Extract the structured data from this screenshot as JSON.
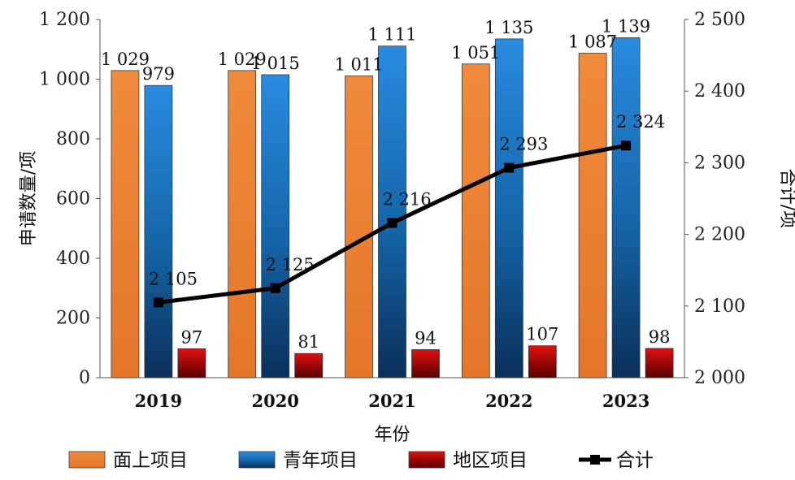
{
  "chart_data": {
    "type": "bar",
    "categories": [
      "2019",
      "2020",
      "2021",
      "2022",
      "2023"
    ],
    "xlabel": "年份",
    "ylabel_left": "申请数量/项",
    "ylabel_right": "合计/项",
    "ylim_left": [
      0,
      1200
    ],
    "ylim_right": [
      2000,
      2500
    ],
    "yticks_left": [
      "0",
      "200",
      "400",
      "600",
      "800",
      "1 000",
      "1 200"
    ],
    "yticks_right": [
      "2 000",
      "2 100",
      "2 200",
      "2 300",
      "2 400",
      "2 500"
    ],
    "grid": false,
    "legend_position": "bottom",
    "series": [
      {
        "name": "面上项目",
        "kind": "bar",
        "axis": "left",
        "color": "#ed7d31",
        "values": [
          1029,
          1029,
          1011,
          1051,
          1087
        ],
        "labels": [
          "1 029",
          "1 029",
          "1 011",
          "1 051",
          "1 087"
        ]
      },
      {
        "name": "青年项目",
        "kind": "bar",
        "axis": "left",
        "color": "#1f78c8",
        "values": [
          979,
          1015,
          1111,
          1135,
          1139
        ],
        "labels": [
          "979",
          "1 015",
          "1 111",
          "1 135",
          "1 139"
        ]
      },
      {
        "name": "地区项目",
        "kind": "bar",
        "axis": "left",
        "color": "#c00000",
        "values": [
          97,
          81,
          94,
          107,
          98
        ],
        "labels": [
          "97",
          "81",
          "94",
          "107",
          "98"
        ]
      },
      {
        "name": "合计",
        "kind": "line",
        "axis": "right",
        "color": "#000000",
        "values": [
          2105,
          2125,
          2216,
          2293,
          2324
        ],
        "labels": [
          "2 105",
          "2 125",
          "2 216",
          "2 293",
          "2 324"
        ]
      }
    ]
  }
}
